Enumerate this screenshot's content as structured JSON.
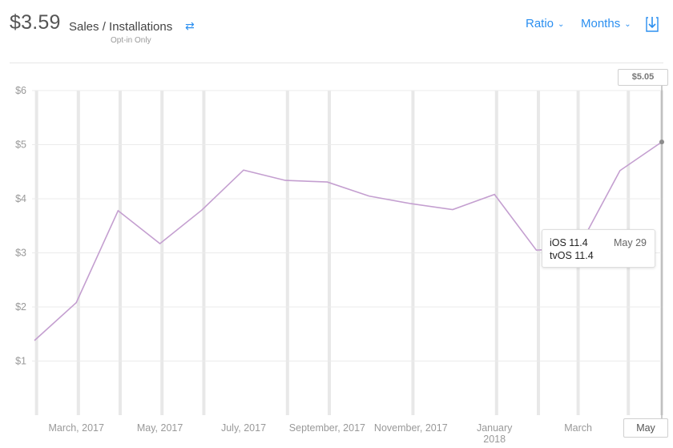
{
  "header": {
    "value": "$3.59",
    "title": "Sales / Installations",
    "subtitle": "Opt-in Only",
    "swap_icon": "swap-arrows-icon"
  },
  "controls": {
    "ratio_label": "Ratio",
    "period_label": "Months",
    "download_icon": "download-icon"
  },
  "tooltip": {
    "line1": "iOS 11.4",
    "line2": "tvOS 11.4",
    "date": "May 29"
  },
  "highlight_value": "$5.05",
  "colors": {
    "line": "#c49fd0",
    "accent": "#2b8ff0",
    "grid": "#ebebeb",
    "event_bar": "#e8e8e8"
  },
  "chart_data": {
    "type": "line",
    "title": "",
    "xlabel": "",
    "ylabel": "",
    "ylim": [
      0,
      6
    ],
    "y_ticks": [
      "$6",
      "$5",
      "$4",
      "$3",
      "$2",
      "$1"
    ],
    "y_tick_values": [
      6,
      5,
      4,
      3,
      2,
      1
    ],
    "x_tick_labels": [
      "March, 2017",
      "May, 2017",
      "July, 2017",
      "September, 2017",
      "November, 2017",
      "January 2018",
      "March",
      "May"
    ],
    "x_tick_index": [
      1,
      3,
      5,
      7,
      9,
      11,
      13,
      15
    ],
    "x": [
      "Feb 2017",
      "Mar 2017",
      "Apr 2017",
      "May 2017",
      "Jun 2017",
      "Jul 2017",
      "Aug 2017",
      "Sep 2017",
      "Oct 2017",
      "Nov 2017",
      "Dec 2017",
      "Jan 2018",
      "Feb 2018",
      "Mar 2018",
      "Apr 2018",
      "May 2018"
    ],
    "series": [
      {
        "values": [
          1.38,
          2.08,
          3.78,
          3.17,
          3.79,
          4.53,
          4.34,
          4.31,
          4.05,
          3.91,
          3.8,
          4.08,
          3.05,
          3.08,
          4.52,
          5.05
        ]
      }
    ],
    "event_markers_index": [
      0.05,
      1.05,
      2.05,
      3.05,
      4.05,
      6.05,
      7.05,
      9.05,
      11.05,
      12.05,
      13.0,
      14.2,
      15.0
    ],
    "grid": true,
    "legend": "none"
  }
}
